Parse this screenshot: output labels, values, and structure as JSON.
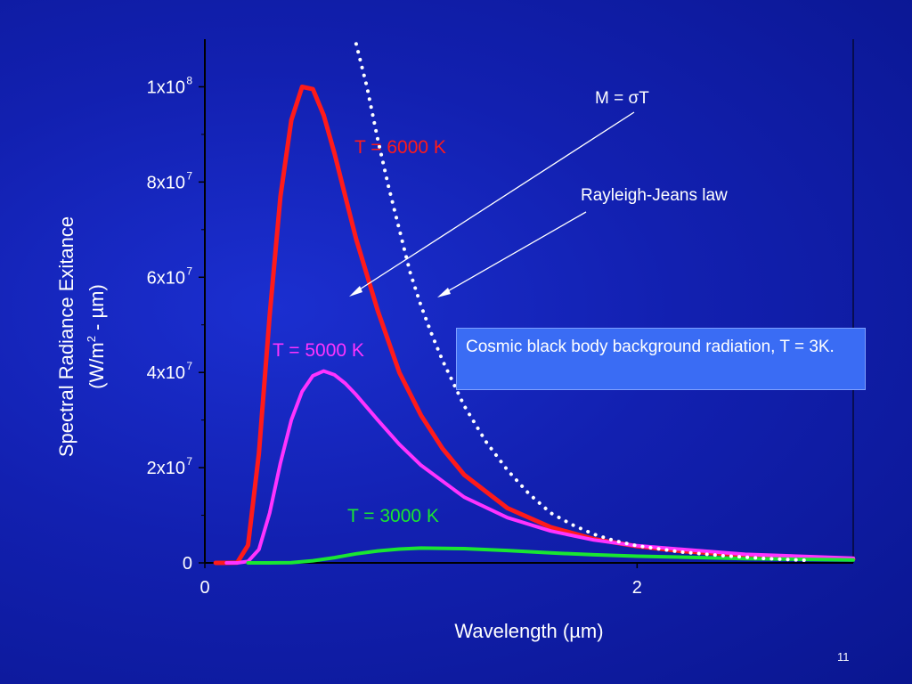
{
  "slide": {
    "page_number": "11"
  },
  "chart_data": {
    "type": "line",
    "xlabel": "Wavelength (µm)",
    "ylabel_line1": "Spectral Radiance Exitance",
    "ylabel_line2_prefix": "(W/m",
    "ylabel_line2_sup": "2",
    "ylabel_line2_suffix": " - µm)",
    "xlim": [
      0,
      3
    ],
    "ylim": [
      0,
      110000000
    ],
    "x_ticks": [
      {
        "value": 0,
        "label": "0"
      },
      {
        "value": 2,
        "label": "2"
      }
    ],
    "y_ticks": [
      {
        "value": 0,
        "base": "0",
        "exp": ""
      },
      {
        "value": 20000000,
        "base": "2x10",
        "exp": "7"
      },
      {
        "value": 40000000,
        "base": "4x10",
        "exp": "7"
      },
      {
        "value": 60000000,
        "base": "6x10",
        "exp": "7"
      },
      {
        "value": 80000000,
        "base": "8x10",
        "exp": "7"
      },
      {
        "value": 100000000,
        "base": "1x10",
        "exp": "8"
      }
    ],
    "series": [
      {
        "name": "T = 6000 K",
        "color": "#ff1a1a",
        "style": "solid",
        "x": [
          0.05,
          0.1,
          0.15,
          0.2,
          0.25,
          0.3,
          0.35,
          0.4,
          0.45,
          0.5,
          0.55,
          0.6,
          0.65,
          0.7,
          0.8,
          0.9,
          1.0,
          1.1,
          1.2,
          1.4,
          1.6,
          1.8,
          2.0,
          2.2,
          2.5,
          3.0
        ],
        "y": [
          0,
          0,
          50000,
          3700000,
          23000000,
          52000000,
          77000000,
          93000000,
          100000000,
          99500000,
          94000000,
          86000000,
          77000000,
          68000000,
          53000000,
          40000000,
          31000000,
          24000000,
          18500000,
          11500000,
          7500000,
          5000000,
          3500000,
          2500000,
          1600000,
          800000
        ]
      },
      {
        "name": "T = 5000 K",
        "color": "#ff33ff",
        "style": "solid",
        "x": [
          0.1,
          0.15,
          0.2,
          0.25,
          0.3,
          0.35,
          0.4,
          0.45,
          0.5,
          0.55,
          0.6,
          0.65,
          0.7,
          0.8,
          0.9,
          1.0,
          1.2,
          1.4,
          1.6,
          1.8,
          2.0,
          2.5,
          3.0
        ],
        "y": [
          0,
          0,
          300000,
          2800000,
          10500000,
          21000000,
          30000000,
          36000000,
          39300000,
          40300000,
          39500000,
          37700000,
          35300000,
          30000000,
          24900000,
          20500000,
          13800000,
          9500000,
          6700000,
          4800000,
          3600000,
          1800000,
          1000000
        ]
      },
      {
        "name": "T = 3000 K",
        "color": "#19e632",
        "style": "solid",
        "x": [
          0.2,
          0.3,
          0.4,
          0.5,
          0.6,
          0.7,
          0.8,
          0.9,
          1.0,
          1.2,
          1.4,
          1.6,
          1.8,
          2.0,
          2.5,
          3.0
        ],
        "y": [
          0,
          0,
          60000,
          450000,
          1100000,
          1900000,
          2500000,
          2900000,
          3100000,
          3000000,
          2600000,
          2100000,
          1700000,
          1400000,
          900000,
          600000
        ]
      },
      {
        "name": "Rayleigh-Jeans law",
        "color": "#ffffff",
        "style": "dotted",
        "x": [
          0.7,
          0.75,
          0.8,
          0.85,
          0.9,
          0.95,
          1.0,
          1.05,
          1.1,
          1.2,
          1.3,
          1.4,
          1.5,
          1.6,
          1.7,
          1.8,
          1.9,
          2.0,
          2.2,
          2.4,
          2.6,
          2.8
        ],
        "y": [
          109000000,
          100000000,
          89000000,
          79000000,
          70000000,
          61000000,
          54000000,
          48000000,
          42500000,
          33000000,
          25500000,
          19500000,
          14500000,
          10500000,
          8000000,
          6000000,
          4600000,
          3600000,
          2300000,
          1500000,
          900000,
          500000
        ]
      }
    ],
    "annotations": {
      "stefan_prefix": "M = ",
      "stefan_symbol": "σ",
      "stefan_suffix": "T",
      "rayleigh_jeans": "Rayleigh-Jeans law",
      "cosmic": "Cosmic black body background radiation, T = 3K."
    }
  }
}
